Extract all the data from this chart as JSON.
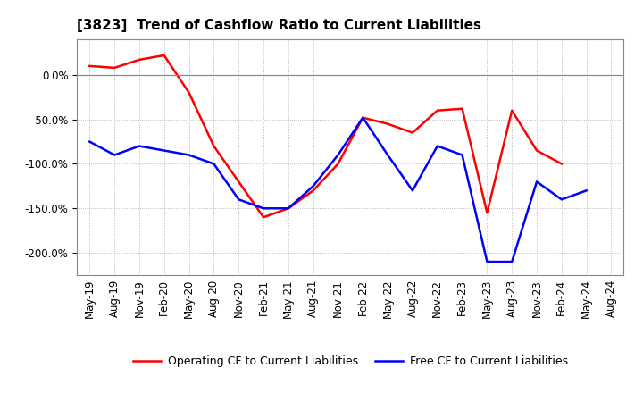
{
  "title": "[3823]  Trend of Cashflow Ratio to Current Liabilities",
  "x_labels": [
    "May-19",
    "Aug-19",
    "Nov-19",
    "Feb-20",
    "May-20",
    "Aug-20",
    "Nov-20",
    "Feb-21",
    "May-21",
    "Aug-21",
    "Nov-21",
    "Feb-22",
    "May-22",
    "Aug-22",
    "Nov-22",
    "Feb-23",
    "May-23",
    "Aug-23",
    "Nov-23",
    "Feb-24",
    "May-24",
    "Aug-24"
  ],
  "operating_cf": [
    10.0,
    8.0,
    17.0,
    22.0,
    -20.0,
    -80.0,
    -120.0,
    -160.0,
    -150.0,
    -130.0,
    -100.0,
    -48.0,
    -55.0,
    -65.0,
    -40.0,
    -38.0,
    -155.0,
    -40.0,
    -85.0,
    -100.0,
    null,
    null
  ],
  "free_cf": [
    -75.0,
    -90.0,
    -80.0,
    -85.0,
    -90.0,
    -100.0,
    -140.0,
    -150.0,
    -150.0,
    -125.0,
    -90.0,
    -48.0,
    -90.0,
    -130.0,
    -80.0,
    -90.0,
    -210.0,
    -210.0,
    -120.0,
    -140.0,
    -130.0,
    null
  ],
  "operating_color": "#FF0000",
  "free_color": "#0000FF",
  "ylim": [
    -225,
    40
  ],
  "yticks": [
    0.0,
    -50.0,
    -100.0,
    -150.0,
    -200.0
  ],
  "background_color": "#FFFFFF",
  "grid_color": "#AAAAAA",
  "legend_op": "Operating CF to Current Liabilities",
  "legend_free": "Free CF to Current Liabilities",
  "title_fontsize": 11,
  "tick_fontsize": 8.5,
  "legend_fontsize": 9
}
